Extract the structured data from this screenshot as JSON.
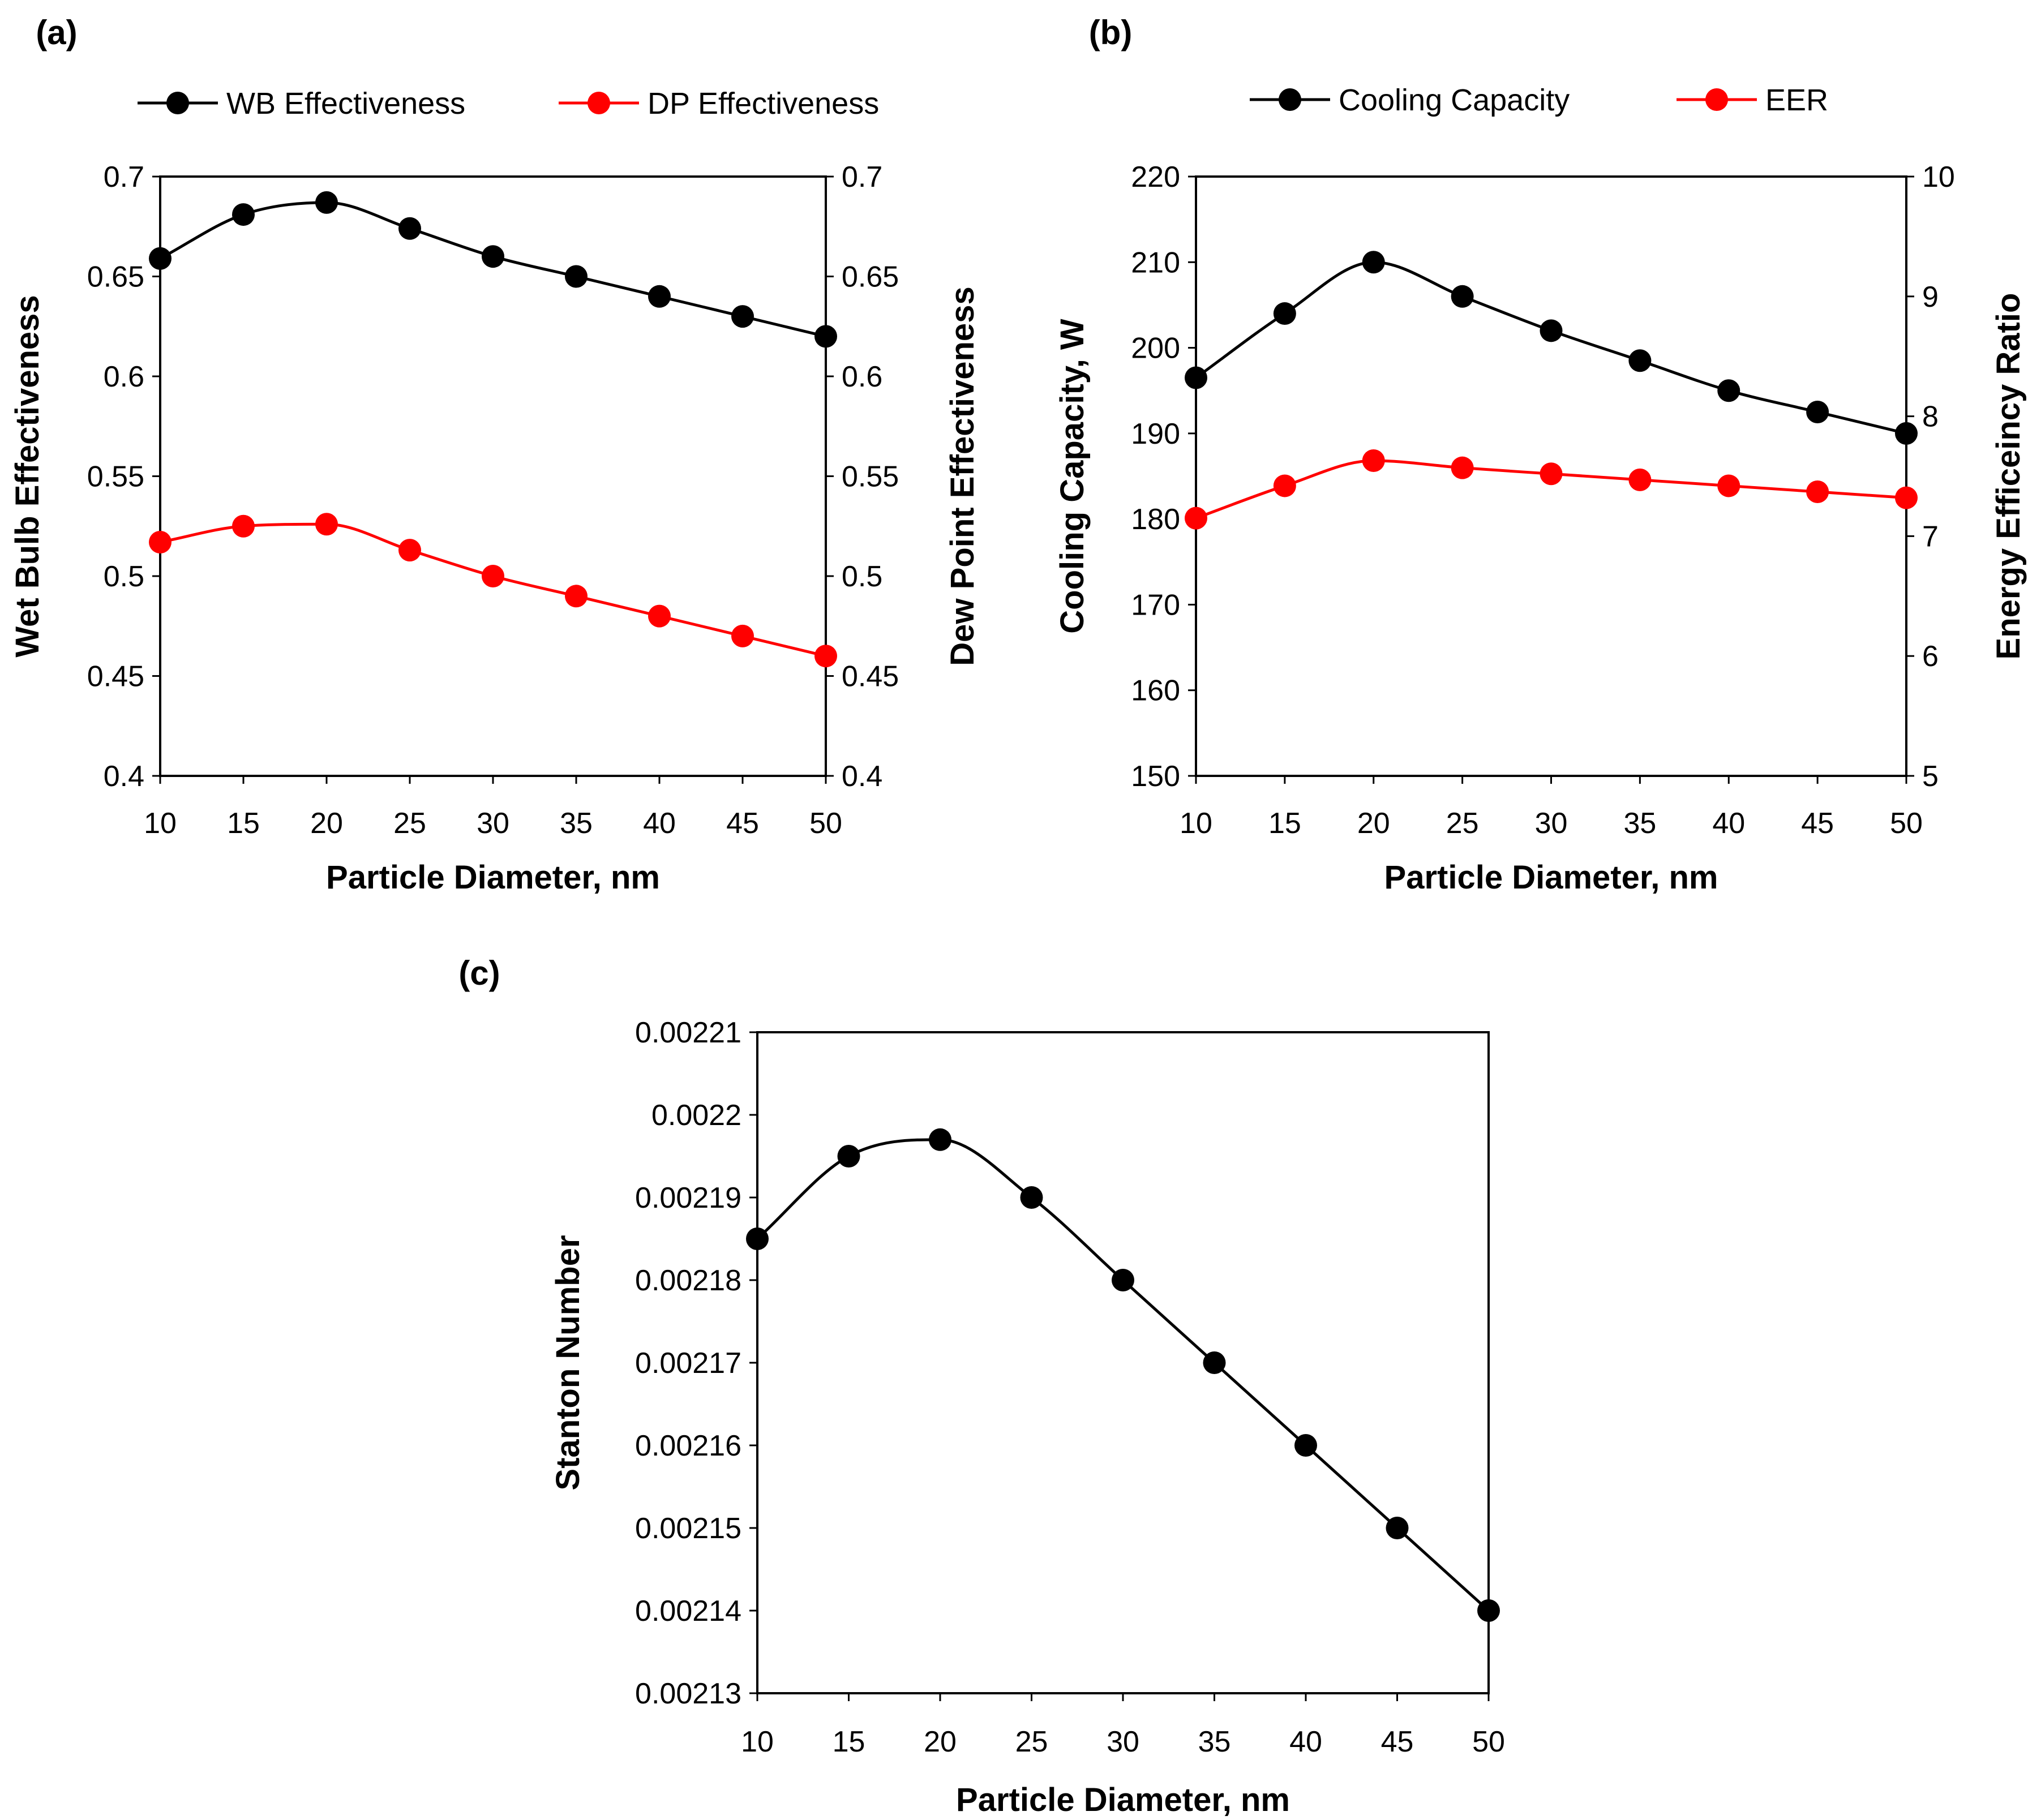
{
  "colors": {
    "series_black": "#000000",
    "series_red": "#ff0000",
    "background": "#ffffff"
  },
  "chart_data": [
    {
      "id": "a",
      "panel_label": "(a)",
      "type": "line",
      "xlabel": "Particle Diameter, nm",
      "ylabel_left": "Wet Bulb Effectiveness",
      "ylabel_right": "Dew Point Effectiveness",
      "x": [
        10,
        15,
        20,
        25,
        30,
        35,
        40,
        45,
        50
      ],
      "xlim": [
        10,
        50
      ],
      "xticks": [
        "10",
        "15",
        "20",
        "25",
        "30",
        "35",
        "40",
        "45",
        "50"
      ],
      "ylim_left": [
        0.4,
        0.7
      ],
      "yticks_left": [
        "0.4",
        "0.45",
        "0.5",
        "0.55",
        "0.6",
        "0.65",
        "0.7"
      ],
      "ylim_right": [
        0.4,
        0.7
      ],
      "yticks_right": [
        "0.4",
        "0.45",
        "0.5",
        "0.55",
        "0.6",
        "0.65",
        "0.7"
      ],
      "series": [
        {
          "name": "WB Effectiveness",
          "axis": "left",
          "color": "#000000",
          "values": [
            0.659,
            0.681,
            0.687,
            0.674,
            0.66,
            0.65,
            0.64,
            0.63,
            0.62
          ]
        },
        {
          "name": "DP Effectiveness",
          "axis": "left",
          "color": "#ff0000",
          "values": [
            0.517,
            0.525,
            0.526,
            0.513,
            0.5,
            0.49,
            0.48,
            0.47,
            0.46
          ]
        }
      ],
      "legend": [
        "WB Effectiveness",
        "DP Effectiveness"
      ]
    },
    {
      "id": "b",
      "panel_label": "(b)",
      "type": "line",
      "xlabel": "Particle Diameter, nm",
      "ylabel_left": "Cooling Capacity, W",
      "ylabel_right": "Energy Efficeincy Ratio",
      "x": [
        10,
        15,
        20,
        25,
        30,
        35,
        40,
        45,
        50
      ],
      "xlim": [
        10,
        50
      ],
      "xticks": [
        "10",
        "15",
        "20",
        "25",
        "30",
        "35",
        "40",
        "45",
        "50"
      ],
      "ylim_left": [
        150,
        220
      ],
      "yticks_left": [
        "150",
        "160",
        "170",
        "180",
        "190",
        "200",
        "210",
        "220"
      ],
      "ylim_right": [
        5,
        10
      ],
      "yticks_right": [
        "5",
        "6",
        "7",
        "8",
        "9",
        "10"
      ],
      "series": [
        {
          "name": "Cooling Capacity",
          "axis": "left",
          "color": "#000000",
          "values": [
            196.5,
            204,
            210,
            206,
            202,
            198.5,
            195,
            192.5,
            190
          ]
        },
        {
          "name": "EER",
          "axis": "right",
          "color": "#ff0000",
          "values": [
            7.15,
            7.42,
            7.63,
            7.57,
            7.52,
            7.47,
            7.42,
            7.37,
            7.32
          ]
        }
      ],
      "legend": [
        "Cooling Capacity",
        "EER"
      ]
    },
    {
      "id": "c",
      "panel_label": "(c)",
      "type": "line",
      "xlabel": "Particle Diameter, nm",
      "ylabel_left": "Stanton Number",
      "x": [
        10,
        15,
        20,
        25,
        30,
        35,
        40,
        45,
        50
      ],
      "xlim": [
        10,
        50
      ],
      "xticks": [
        "10",
        "15",
        "20",
        "25",
        "30",
        "35",
        "40",
        "45",
        "50"
      ],
      "ylim_left": [
        0.00213,
        0.00221
      ],
      "yticks_left": [
        "0.00213",
        "0.00214",
        "0.00215",
        "0.00216",
        "0.00217",
        "0.00218",
        "0.00219",
        "0.0022",
        "0.00221"
      ],
      "series": [
        {
          "name": "Stanton Number",
          "axis": "left",
          "color": "#000000",
          "values": [
            0.002185,
            0.002195,
            0.002197,
            0.00219,
            0.00218,
            0.00217,
            0.00216,
            0.00215,
            0.00214
          ]
        }
      ],
      "legend": []
    }
  ]
}
